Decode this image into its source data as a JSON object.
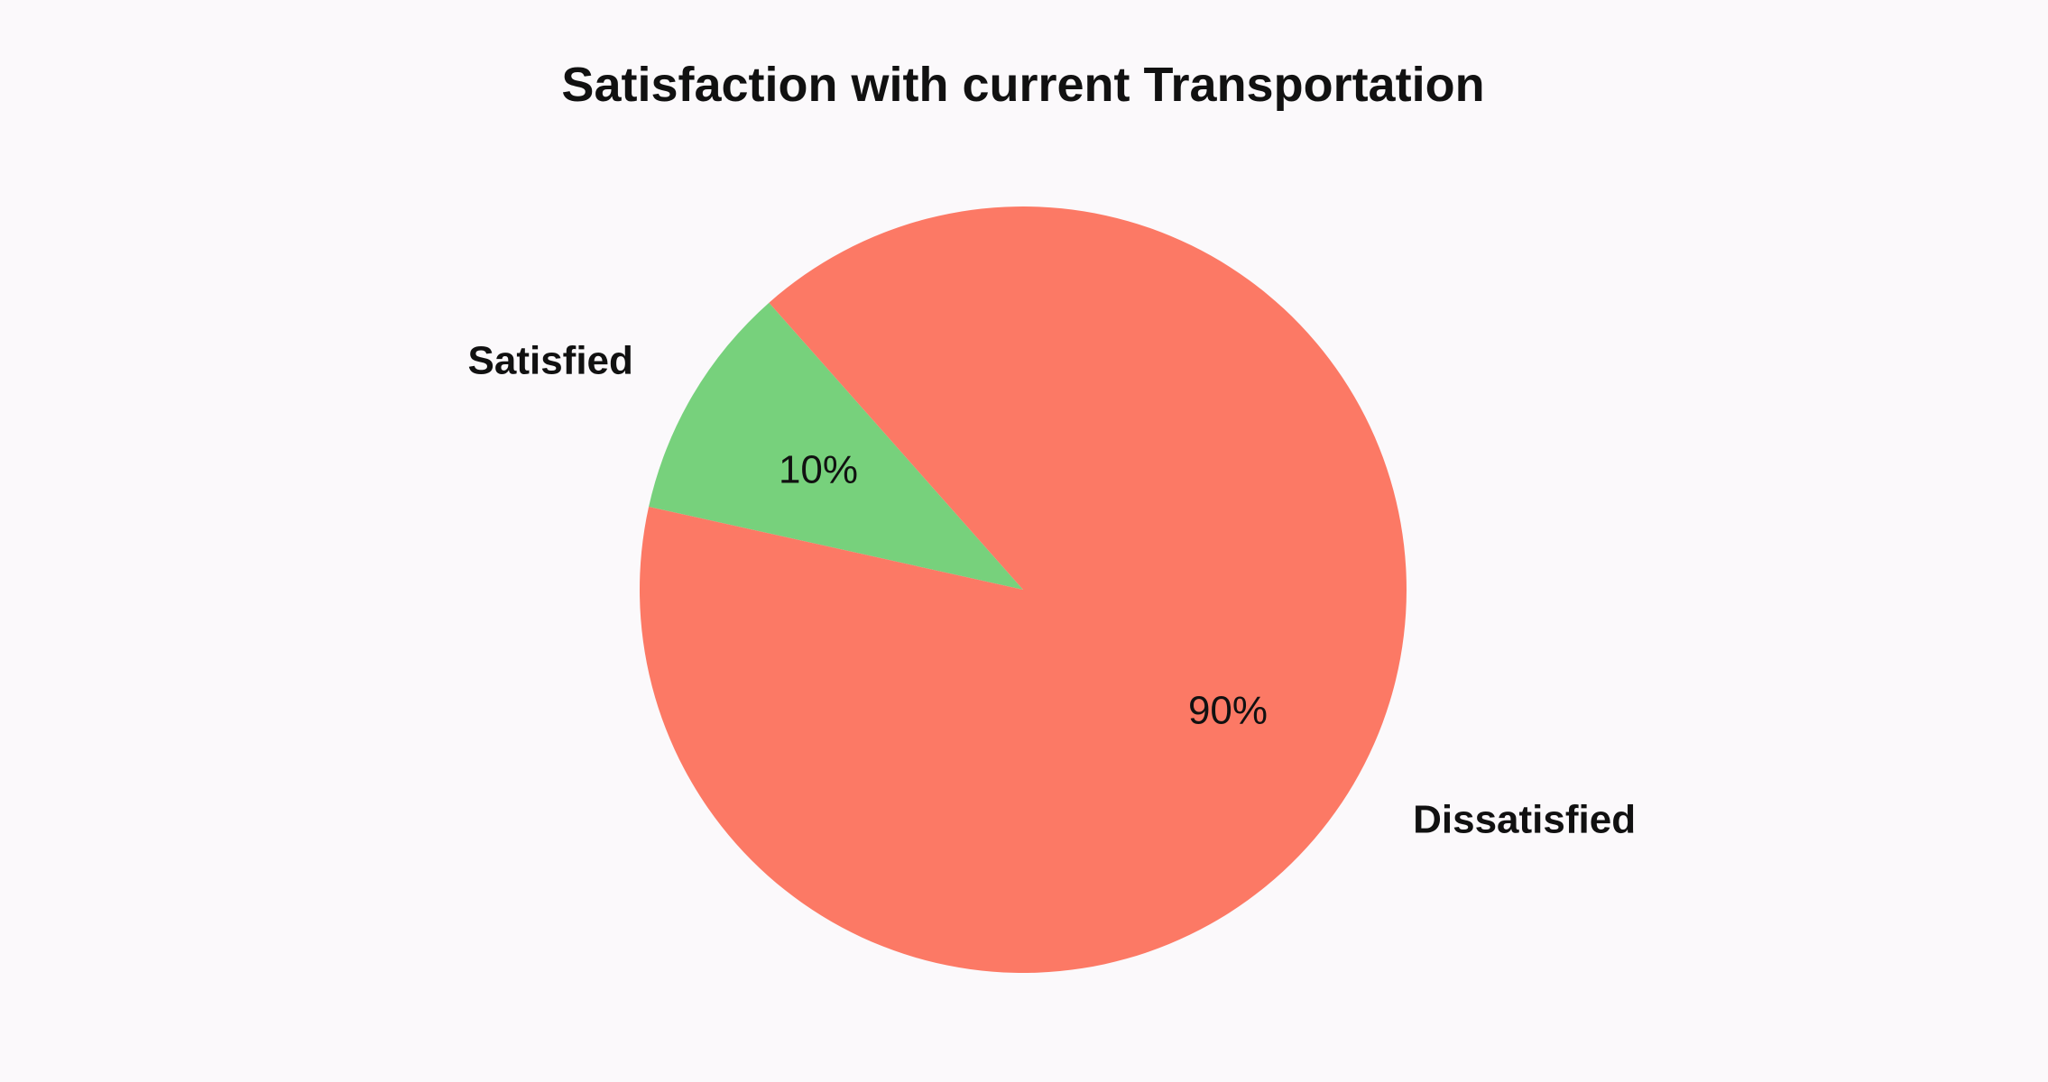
{
  "chart_data": {
    "type": "pie",
    "title": "Satisfaction with current Transportation",
    "start_angle_deg": 131.5,
    "direction": "counterclockwise",
    "slices": [
      {
        "label": "Satisfied",
        "value": 10,
        "value_label": "10%",
        "color": "#77d17c"
      },
      {
        "label": "Dissatisfied",
        "value": 90,
        "value_label": "90%",
        "color": "#fc7965"
      }
    ]
  }
}
